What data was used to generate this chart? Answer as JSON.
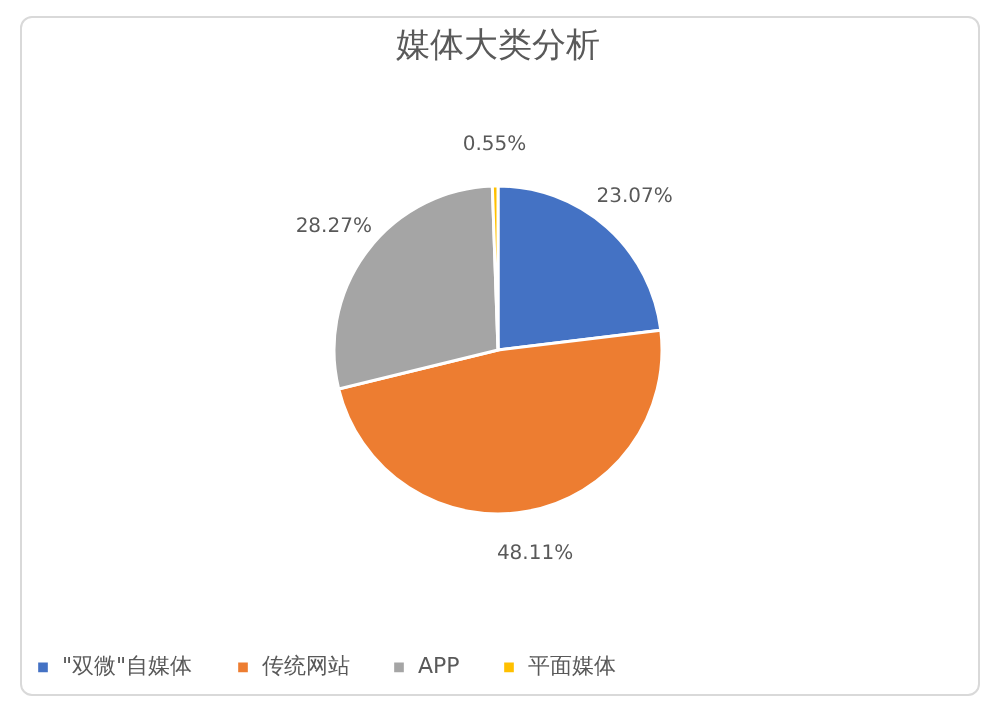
{
  "chart_data": {
    "type": "pie",
    "title": "媒体大类分析",
    "categories": [
      "\"双微\"自媒体",
      "传统网站",
      "APP",
      "平面媒体"
    ],
    "values": [
      23.07,
      48.11,
      28.27,
      0.55
    ],
    "colors": [
      "#4472c4",
      "#ed7d31",
      "#a5a5a5",
      "#ffc000"
    ],
    "value_labels": [
      "23.07%",
      "48.11%",
      "28.27%",
      "0.55%"
    ],
    "legend": "bottom"
  }
}
